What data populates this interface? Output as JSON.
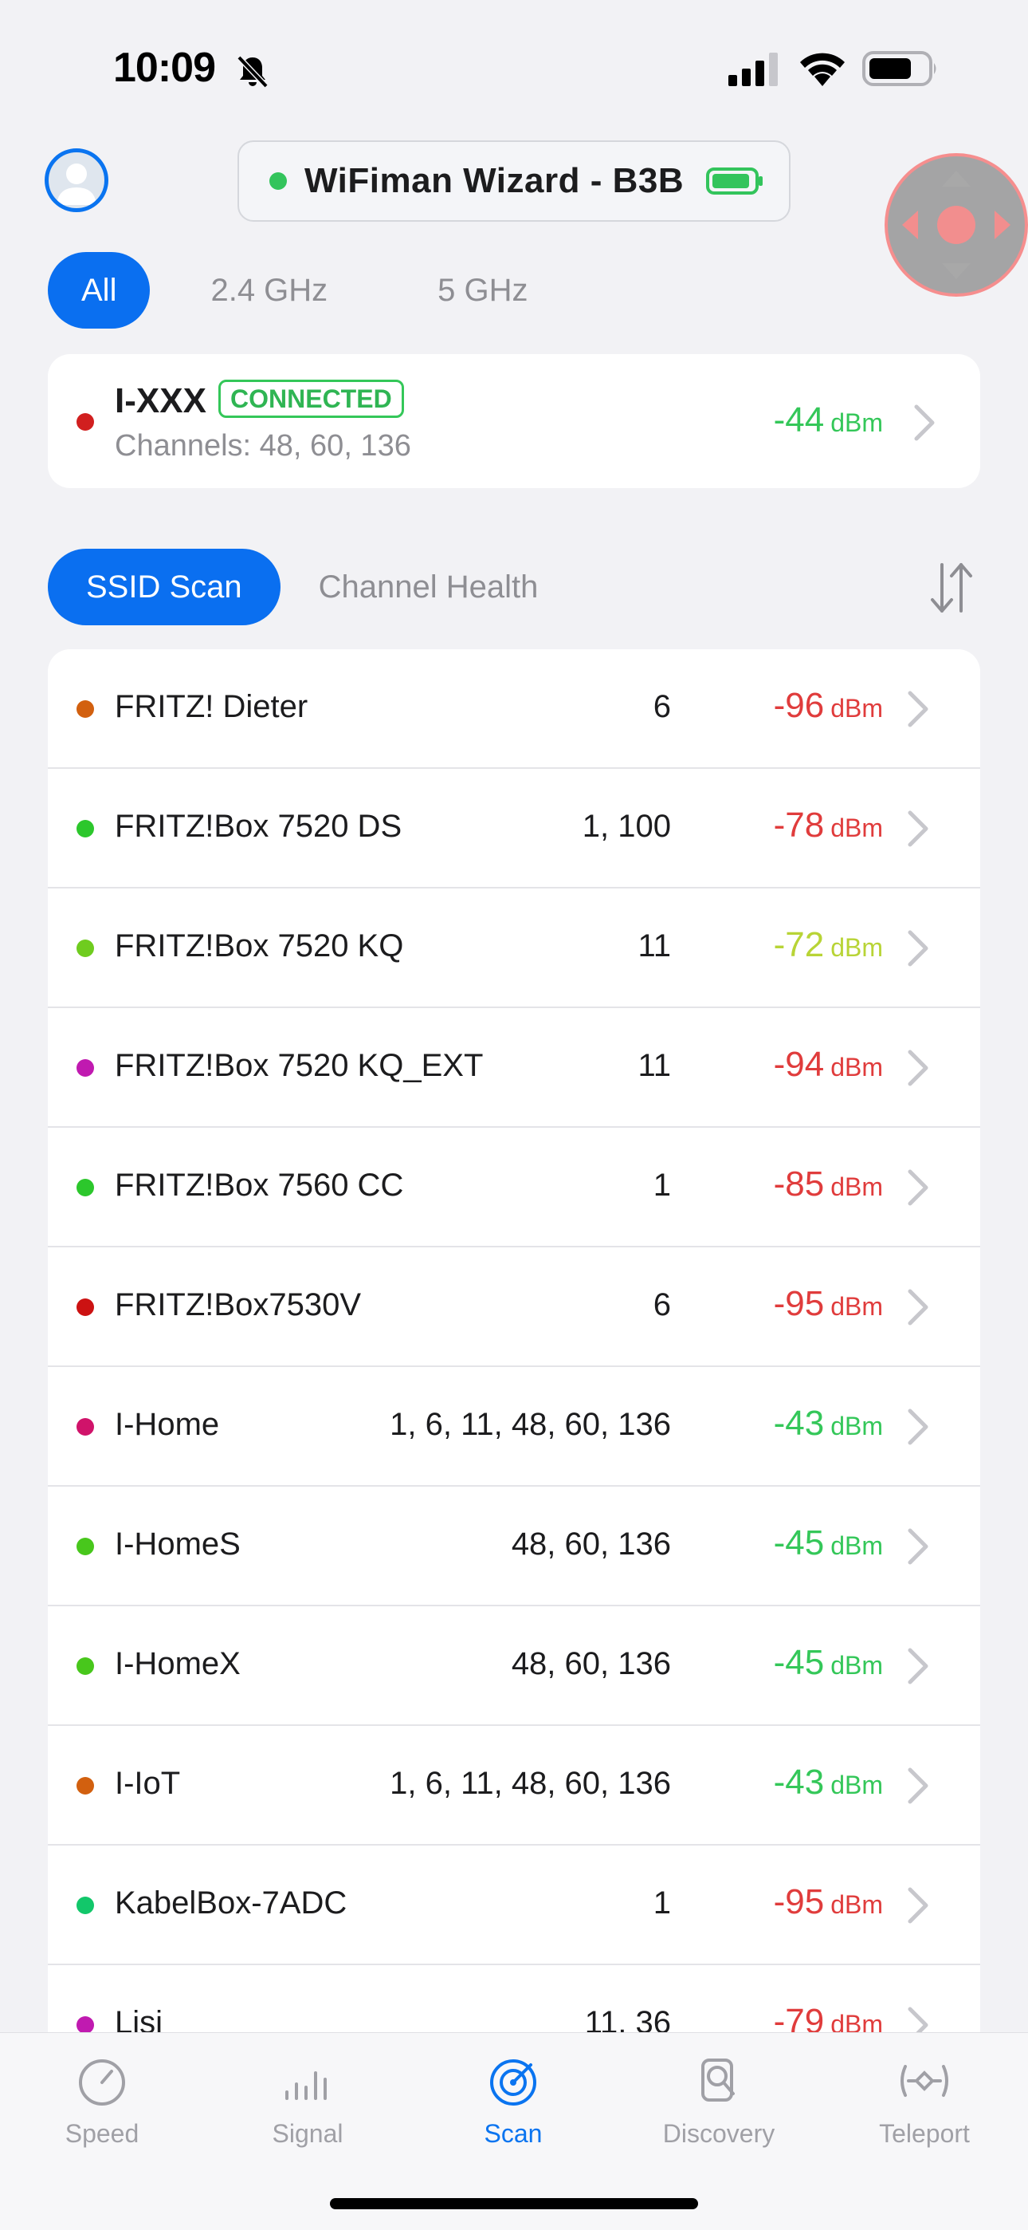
{
  "status_bar": {
    "time": "10:09",
    "icons": [
      "bell-slash-icon",
      "cellular-signal-icon",
      "wifi-icon",
      "battery-icon"
    ]
  },
  "header": {
    "device_name": "WiFiman Wizard - B3B",
    "device_status_color": "#33c45c",
    "icons": [
      "avatar-icon",
      "device-battery-icon"
    ]
  },
  "band_tabs": [
    {
      "label": "All",
      "active": true
    },
    {
      "label": "2.4 GHz",
      "active": false
    },
    {
      "label": "5 GHz",
      "active": false
    }
  ],
  "connected": {
    "ssid": "I-XXX",
    "badge": "CONNECTED",
    "channels": "Channels: 48, 60, 136",
    "signal": "-44",
    "unit": "dBm",
    "dot_color": "#d11f1f",
    "signal_color": "#34c759"
  },
  "mode_tabs": [
    {
      "label": "SSID Scan",
      "active": true
    },
    {
      "label": "Channel Health",
      "active": false
    }
  ],
  "networks": [
    {
      "name": "FRITZ! Dieter",
      "channels": "6",
      "signal": "-96",
      "unit": "dBm",
      "dot_color": "#d2600f",
      "signal_color": "#e03c3c"
    },
    {
      "name": "FRITZ!Box 7520 DS",
      "channels": "1, 100",
      "signal": "-78",
      "unit": "dBm",
      "dot_color": "#2cc72c",
      "signal_color": "#e03c3c"
    },
    {
      "name": "FRITZ!Box 7520 KQ",
      "channels": "11",
      "signal": "-72",
      "unit": "dBm",
      "dot_color": "#6fcc1f",
      "signal_color": "#b8d436"
    },
    {
      "name": "FRITZ!Box 7520 KQ_EXT",
      "channels": "11",
      "signal": "-94",
      "unit": "dBm",
      "dot_color": "#c01ab0",
      "signal_color": "#e03c3c"
    },
    {
      "name": "FRITZ!Box 7560 CC",
      "channels": "1",
      "signal": "-85",
      "unit": "dBm",
      "dot_color": "#2cc72c",
      "signal_color": "#e03c3c"
    },
    {
      "name": "FRITZ!Box7530V",
      "channels": "6",
      "signal": "-95",
      "unit": "dBm",
      "dot_color": "#cc1212",
      "signal_color": "#e03c3c"
    },
    {
      "name": "I-Home",
      "channels": "1, 6, 11, 48, 60, 136",
      "signal": "-43",
      "unit": "dBm",
      "dot_color": "#d0136a",
      "signal_color": "#34c759"
    },
    {
      "name": "I-HomeS",
      "channels": "48, 60, 136",
      "signal": "-45",
      "unit": "dBm",
      "dot_color": "#48c71c",
      "signal_color": "#34c759"
    },
    {
      "name": "I-HomeX",
      "channels": "48, 60, 136",
      "signal": "-45",
      "unit": "dBm",
      "dot_color": "#48c71c",
      "signal_color": "#34c759"
    },
    {
      "name": "I-IoT",
      "channels": "1, 6, 11, 48, 60, 136",
      "signal": "-43",
      "unit": "dBm",
      "dot_color": "#d2600f",
      "signal_color": "#34c759"
    },
    {
      "name": "KabelBox-7ADC",
      "channels": "1",
      "signal": "-95",
      "unit": "dBm",
      "dot_color": "#12c76a",
      "signal_color": "#e03c3c"
    },
    {
      "name": "Lisi",
      "channels": "11, 36",
      "signal": "-79",
      "unit": "dBm",
      "dot_color": "#c01ab0",
      "signal_color": "#e03c3c"
    }
  ],
  "tab_bar": [
    {
      "label": "Speed",
      "icon": "speedometer-icon",
      "active": false
    },
    {
      "label": "Signal",
      "icon": "signal-bars-icon",
      "active": false
    },
    {
      "label": "Scan",
      "icon": "radar-icon",
      "active": true
    },
    {
      "label": "Discovery",
      "icon": "device-search-icon",
      "active": false
    },
    {
      "label": "Teleport",
      "icon": "teleport-icon",
      "active": false
    }
  ],
  "colors": {
    "accent": "#0a6ff0",
    "background": "#f2f2f5",
    "good": "#34c759",
    "bad": "#e03c3c",
    "fair": "#b8d436"
  }
}
